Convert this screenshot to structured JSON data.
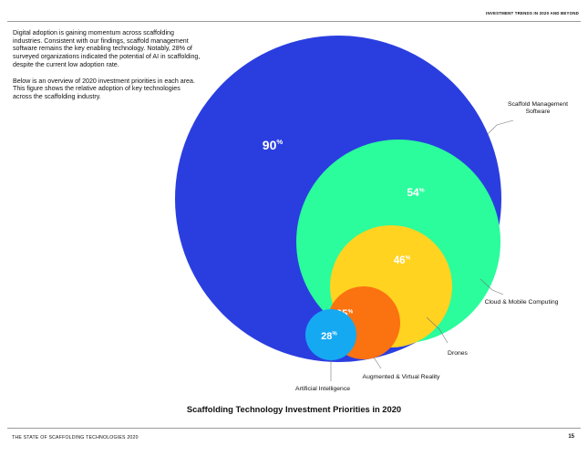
{
  "running_head": "INVESTMENT TRENDS IN 2020 AND BEYOND",
  "intro": {
    "paragraph_1": "Digital adoption is gaining momentum across scaffolding industries. Consistent with our findings, scaffold management software remains the key enabling technology. Notably, 28% of surveyed organizations indicated the potential of AI in scaffolding, despite the current low adoption rate.",
    "paragraph_2": "Below is an overview of 2020 investment priorities in each area. This figure shows the relative adoption of key technologies across the scaffolding industry."
  },
  "chart_data": {
    "type": "bubble",
    "title": "Scaffolding Technology Investment Priorities in 2020",
    "unit": "%",
    "items": [
      {
        "label": [
          "Scaffold Management",
          "Software"
        ],
        "value": 90,
        "color": "#2a3ee0"
      },
      {
        "label": [
          "Cloud & Mobile Computing"
        ],
        "value": 54,
        "color": "#2bfc9c"
      },
      {
        "label": [
          "Drones"
        ],
        "value": 46,
        "color": "#ffd320"
      },
      {
        "label": [
          "Augmented & Virtual Reality"
        ],
        "value": 35,
        "color": "#fb7211"
      },
      {
        "label": [
          "Artificial Intelligence"
        ],
        "value": 28,
        "color": "#15a9f2"
      }
    ]
  },
  "footer": {
    "left": "THE STATE OF SCAFFOLDING TECHNOLOGIES 2020",
    "page": "15"
  }
}
